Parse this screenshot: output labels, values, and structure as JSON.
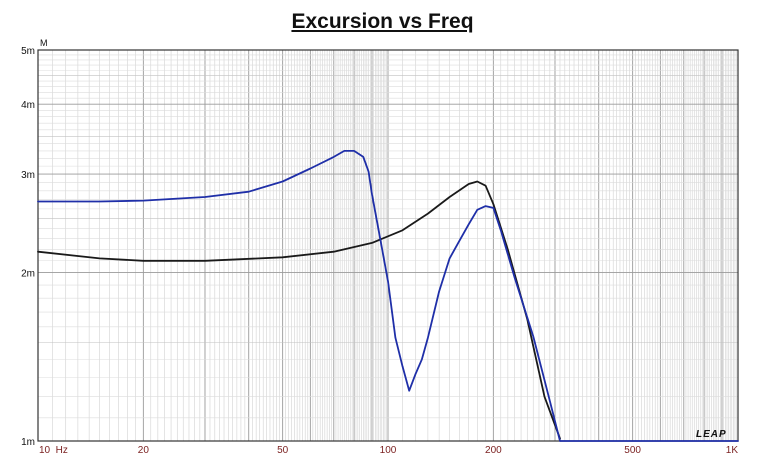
{
  "chart_data": {
    "type": "line",
    "title": "Excursion vs Freq",
    "y_unit": "M",
    "brand": "LEAP",
    "x_scale": "log",
    "y_scale": "log",
    "xlim": [
      10,
      1000
    ],
    "ylim": [
      0.001,
      0.005
    ],
    "grid": true,
    "x_ticks": [
      {
        "value": 10,
        "label": "10  Hz"
      },
      {
        "value": 20,
        "label": "20"
      },
      {
        "value": 50,
        "label": "50"
      },
      {
        "value": 100,
        "label": "100"
      },
      {
        "value": 200,
        "label": "200"
      },
      {
        "value": 500,
        "label": "500"
      },
      {
        "value": 1000,
        "label": "1K"
      }
    ],
    "y_ticks": [
      {
        "value": 0.001,
        "label": "1m"
      },
      {
        "value": 0.002,
        "label": "2m"
      },
      {
        "value": 0.003,
        "label": "3m"
      },
      {
        "value": 0.004,
        "label": "4m"
      },
      {
        "value": 0.005,
        "label": "5m"
      }
    ],
    "series": [
      {
        "color": "#1a1a1a",
        "x": [
          10,
          15,
          20,
          30,
          50,
          70,
          90,
          110,
          130,
          150,
          170,
          180,
          190,
          200,
          220,
          250,
          280,
          310
        ],
        "y": [
          0.00218,
          0.00212,
          0.0021,
          0.0021,
          0.00213,
          0.00218,
          0.00226,
          0.00238,
          0.00255,
          0.00273,
          0.00288,
          0.00291,
          0.00286,
          0.00265,
          0.0022,
          0.00165,
          0.0012,
          0.00101
        ]
      },
      {
        "color": "#1f2fa8",
        "x": [
          10,
          15,
          20,
          30,
          40,
          50,
          60,
          70,
          75,
          80,
          85,
          88,
          90,
          95,
          100,
          105,
          110,
          115,
          120,
          125,
          130,
          140,
          150,
          160,
          170,
          180,
          190,
          200,
          210,
          230,
          260,
          290,
          310,
          500,
          1000
        ],
        "y": [
          0.00268,
          0.00268,
          0.00269,
          0.00273,
          0.00279,
          0.00291,
          0.00307,
          0.00322,
          0.0033,
          0.0033,
          0.00322,
          0.00303,
          0.00276,
          0.0023,
          0.00193,
          0.00153,
          0.00136,
          0.00123,
          0.00132,
          0.0014,
          0.00153,
          0.00185,
          0.00212,
          0.00228,
          0.00244,
          0.00259,
          0.00263,
          0.00261,
          0.00238,
          0.00196,
          0.00154,
          0.00118,
          0.001,
          0.001,
          0.001
        ]
      }
    ]
  }
}
